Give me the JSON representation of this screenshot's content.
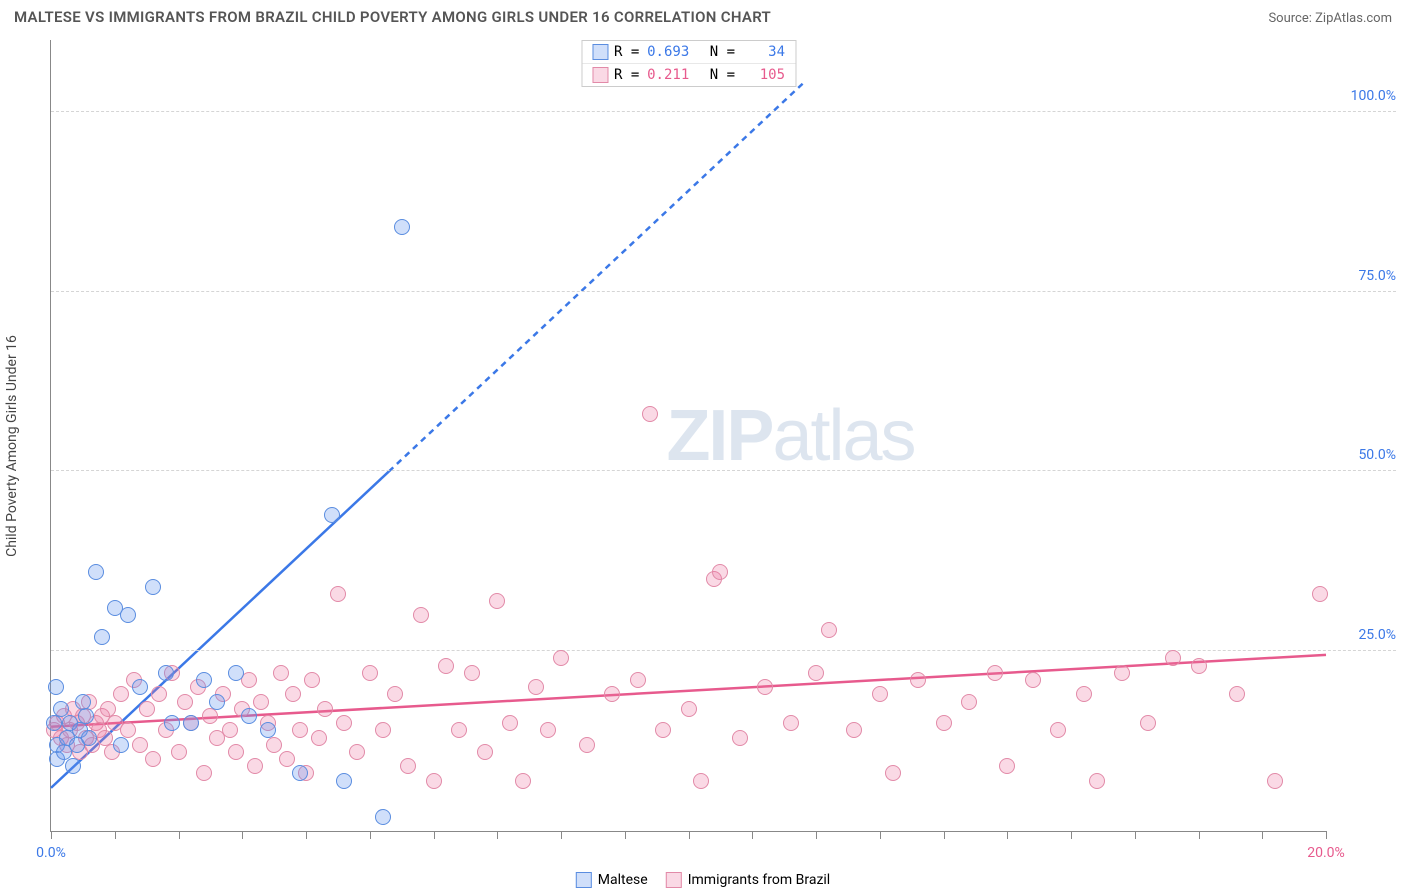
{
  "title": "MALTESE VS IMMIGRANTS FROM BRAZIL CHILD POVERTY AMONG GIRLS UNDER 16 CORRELATION CHART",
  "source_label": "Source:",
  "source_name": "ZipAtlas.com",
  "y_axis_label": "Child Poverty Among Girls Under 16",
  "watermark": {
    "bold": "ZIP",
    "light": "atlas"
  },
  "chart": {
    "type": "scatter",
    "background_color": "#ffffff",
    "grid_color": "#d5d5d5",
    "axis_color": "#888888",
    "xlim": [
      0,
      20
    ],
    "ylim": [
      0,
      110
    ],
    "x_ticks": [
      0,
      1,
      2,
      3,
      4,
      5,
      6,
      7,
      8,
      9,
      10,
      11,
      12,
      13,
      14,
      15,
      16,
      17,
      18,
      19,
      20
    ],
    "x_tick_labels": {
      "0": "0.0%",
      "20": "20.0%"
    },
    "x_tick_label_colors": {
      "0": "#3b78e7",
      "20": "#e75a8d"
    },
    "y_gridlines": [
      25,
      50,
      75,
      100
    ],
    "y_tick_labels": {
      "25": "25.0%",
      "50": "50.0%",
      "75": "75.0%",
      "100": "100.0%"
    },
    "y_tick_color": "#3b78e7",
    "point_radius": 8,
    "point_border_width": 1.5,
    "point_fill_opacity": 0.25,
    "trend_solid_width": 2.5,
    "trend_dash_pattern": "6 5"
  },
  "series": {
    "maltese": {
      "label": "Maltese",
      "color": "#3b78e7",
      "fill": "rgba(99,150,238,0.30)",
      "stroke": "#5a8de0",
      "r": 0.693,
      "n": 34,
      "trend": {
        "x1": 0,
        "y1": 6,
        "x2": 5.3,
        "y2": 50,
        "dash_x2": 11.8,
        "dash_y2": 104
      },
      "points": [
        [
          0.05,
          15
        ],
        [
          0.08,
          20
        ],
        [
          0.1,
          10
        ],
        [
          0.1,
          12
        ],
        [
          0.15,
          17
        ],
        [
          0.2,
          11
        ],
        [
          0.25,
          13
        ],
        [
          0.3,
          15
        ],
        [
          0.35,
          9
        ],
        [
          0.4,
          12
        ],
        [
          0.45,
          14
        ],
        [
          0.5,
          18
        ],
        [
          0.55,
          16
        ],
        [
          0.6,
          13
        ],
        [
          0.7,
          36
        ],
        [
          0.8,
          27
        ],
        [
          1.0,
          31
        ],
        [
          1.1,
          12
        ],
        [
          1.2,
          30
        ],
        [
          1.4,
          20
        ],
        [
          1.6,
          34
        ],
        [
          1.8,
          22
        ],
        [
          1.9,
          15
        ],
        [
          2.2,
          15
        ],
        [
          2.4,
          21
        ],
        [
          2.6,
          18
        ],
        [
          2.9,
          22
        ],
        [
          3.1,
          16
        ],
        [
          3.4,
          14
        ],
        [
          3.9,
          8
        ],
        [
          4.4,
          44
        ],
        [
          4.6,
          7
        ],
        [
          5.2,
          2
        ],
        [
          5.5,
          84
        ]
      ]
    },
    "brazil": {
      "label": "Immigants from Brazil",
      "label_full": "Immigrants from Brazil",
      "color": "#e75a8d",
      "fill": "rgba(236,120,160,0.28)",
      "stroke": "#e28aa8",
      "r": 0.211,
      "n": 105,
      "trend": {
        "x1": 0,
        "y1": 14.5,
        "x2": 20,
        "y2": 24.5
      },
      "points": [
        [
          0.05,
          14
        ],
        [
          0.1,
          15
        ],
        [
          0.15,
          13
        ],
        [
          0.2,
          16
        ],
        [
          0.25,
          12
        ],
        [
          0.3,
          14
        ],
        [
          0.35,
          17
        ],
        [
          0.4,
          15
        ],
        [
          0.45,
          11
        ],
        [
          0.5,
          16
        ],
        [
          0.55,
          13
        ],
        [
          0.6,
          18
        ],
        [
          0.65,
          12
        ],
        [
          0.7,
          15
        ],
        [
          0.75,
          14
        ],
        [
          0.8,
          16
        ],
        [
          0.85,
          13
        ],
        [
          0.9,
          17
        ],
        [
          0.95,
          11
        ],
        [
          1.0,
          15
        ],
        [
          1.1,
          19
        ],
        [
          1.2,
          14
        ],
        [
          1.3,
          21
        ],
        [
          1.4,
          12
        ],
        [
          1.5,
          17
        ],
        [
          1.6,
          10
        ],
        [
          1.7,
          19
        ],
        [
          1.8,
          14
        ],
        [
          1.9,
          22
        ],
        [
          2.0,
          11
        ],
        [
          2.1,
          18
        ],
        [
          2.2,
          15
        ],
        [
          2.3,
          20
        ],
        [
          2.4,
          8
        ],
        [
          2.5,
          16
        ],
        [
          2.6,
          13
        ],
        [
          2.7,
          19
        ],
        [
          2.8,
          14
        ],
        [
          2.9,
          11
        ],
        [
          3.0,
          17
        ],
        [
          3.1,
          21
        ],
        [
          3.2,
          9
        ],
        [
          3.3,
          18
        ],
        [
          3.4,
          15
        ],
        [
          3.5,
          12
        ],
        [
          3.6,
          22
        ],
        [
          3.7,
          10
        ],
        [
          3.8,
          19
        ],
        [
          3.9,
          14
        ],
        [
          4.0,
          8
        ],
        [
          4.1,
          21
        ],
        [
          4.2,
          13
        ],
        [
          4.3,
          17
        ],
        [
          4.5,
          33
        ],
        [
          4.6,
          15
        ],
        [
          4.8,
          11
        ],
        [
          5.0,
          22
        ],
        [
          5.2,
          14
        ],
        [
          5.4,
          19
        ],
        [
          5.6,
          9
        ],
        [
          5.8,
          30
        ],
        [
          6.0,
          7
        ],
        [
          6.2,
          23
        ],
        [
          6.4,
          14
        ],
        [
          6.6,
          22
        ],
        [
          6.8,
          11
        ],
        [
          7.0,
          32
        ],
        [
          7.2,
          15
        ],
        [
          7.4,
          7
        ],
        [
          7.6,
          20
        ],
        [
          7.8,
          14
        ],
        [
          8.0,
          24
        ],
        [
          8.4,
          12
        ],
        [
          8.8,
          19
        ],
        [
          9.2,
          21
        ],
        [
          9.4,
          58
        ],
        [
          9.6,
          14
        ],
        [
          10.0,
          17
        ],
        [
          10.2,
          7
        ],
        [
          10.4,
          35
        ],
        [
          10.5,
          36
        ],
        [
          10.8,
          13
        ],
        [
          11.2,
          20
        ],
        [
          11.6,
          15
        ],
        [
          12.0,
          22
        ],
        [
          12.2,
          28
        ],
        [
          12.6,
          14
        ],
        [
          13.0,
          19
        ],
        [
          13.2,
          8
        ],
        [
          13.6,
          21
        ],
        [
          14.0,
          15
        ],
        [
          14.4,
          18
        ],
        [
          14.8,
          22
        ],
        [
          15.0,
          9
        ],
        [
          15.4,
          21
        ],
        [
          15.8,
          14
        ],
        [
          16.2,
          19
        ],
        [
          16.4,
          7
        ],
        [
          16.8,
          22
        ],
        [
          17.2,
          15
        ],
        [
          17.6,
          24
        ],
        [
          18.0,
          23
        ],
        [
          18.6,
          19
        ],
        [
          19.2,
          7
        ],
        [
          19.9,
          33
        ]
      ]
    }
  },
  "stats_labels": {
    "r": "R =",
    "n": "N ="
  }
}
